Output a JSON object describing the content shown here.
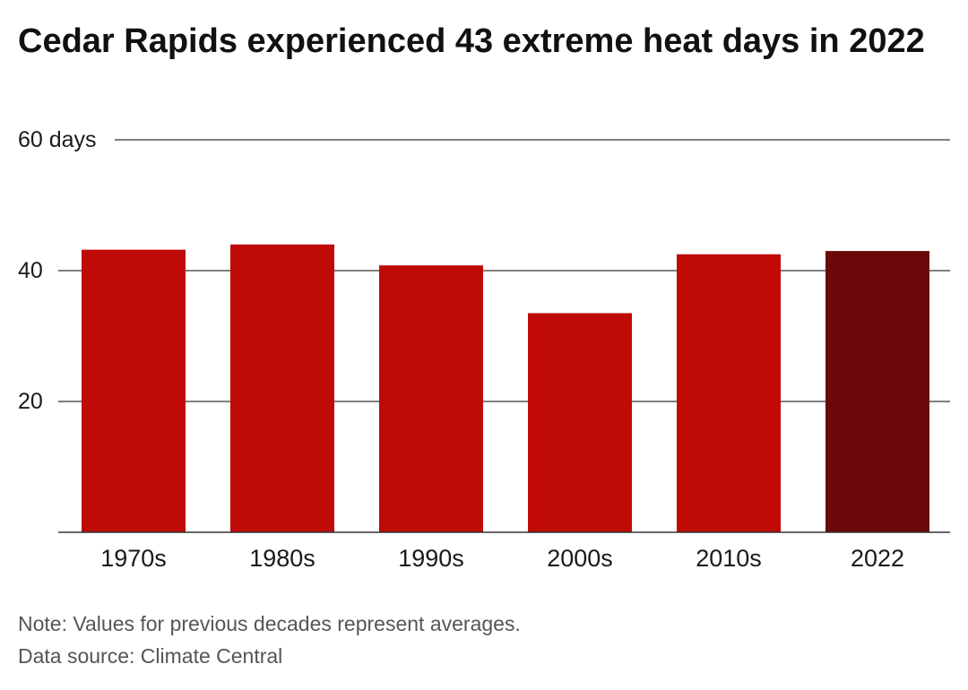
{
  "title": "Cedar Rapids experienced 43 extreme heat days in 2022",
  "chart_data": {
    "type": "bar",
    "categories": [
      "1970s",
      "1980s",
      "1990s",
      "2000s",
      "2010s",
      "2022"
    ],
    "values": [
      43.2,
      44.0,
      40.8,
      33.5,
      42.5,
      43
    ],
    "y_ticks": [
      {
        "value": 60,
        "label": "60 days"
      },
      {
        "value": 40,
        "label": "40"
      },
      {
        "value": 20,
        "label": "20"
      }
    ],
    "ylim": [
      0,
      60
    ],
    "grid": true,
    "colors": {
      "bar": "#c00a06",
      "highlight": "#6b090a",
      "grid": "#333333"
    },
    "highlight_category": "2022"
  },
  "footer": {
    "note": "Note: Values for previous decades represent averages.",
    "source": "Data source: Climate Central"
  }
}
